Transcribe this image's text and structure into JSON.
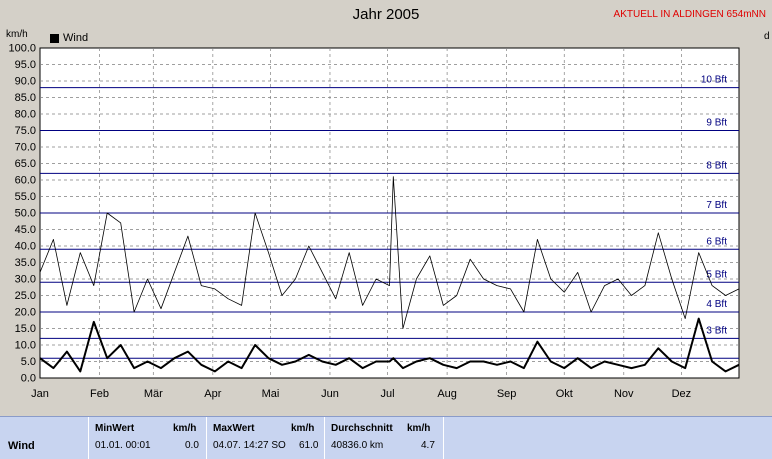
{
  "header": {
    "title": "Jahr 2005",
    "station": "AKTUELL IN ALDINGEN 654mNN",
    "y_unit": "km/h",
    "right_unit": "d"
  },
  "legend": {
    "label": "Wind"
  },
  "stats": {
    "row_label": "Wind",
    "min": {
      "label": "MinWert",
      "unit": "km/h",
      "date": "01.01.  00:01",
      "value": "0.0"
    },
    "max": {
      "label": "MaxWert",
      "unit": "km/h",
      "date": "04.07.  14:27 SO",
      "value": "61.0"
    },
    "avg": {
      "label": "Durchschnitt",
      "unit": "km/h",
      "distance": "40836.0 km",
      "value": "4.7"
    }
  },
  "colors": {
    "plot_bg": "#ffffff",
    "grid": "#808080",
    "beaufort": "#000080",
    "series": "#000000",
    "station": "#e00000"
  },
  "chart_data": {
    "type": "line",
    "title": "Jahr 2005",
    "ylabel": "km/h",
    "ylim": [
      0,
      100
    ],
    "y_ticks": [
      "0.0",
      "5.0",
      "10.0",
      "15.0",
      "20.0",
      "25.0",
      "30.0",
      "35.0",
      "40.0",
      "45.0",
      "50.0",
      "55.0",
      "60.0",
      "65.0",
      "70.0",
      "75.0",
      "80.0",
      "85.0",
      "90.0",
      "95.0",
      "100.0"
    ],
    "x_ticks": [
      "Jan",
      "Feb",
      "Mär",
      "Apr",
      "Mai",
      "Jun",
      "Jul",
      "Aug",
      "Sep",
      "Okt",
      "Nov",
      "Dez"
    ],
    "grid": true,
    "beaufort_lines": [
      {
        "label": "3 Bft",
        "value": 12
      },
      {
        "label": "4 Bft",
        "value": 20
      },
      {
        "label": "5 Bft",
        "value": 29
      },
      {
        "label": "6 Bft",
        "value": 39
      },
      {
        "label": "7 Bft",
        "value": 50
      },
      {
        "label": "8 Bft",
        "value": 62
      },
      {
        "label": "9 Bft",
        "value": 75
      },
      {
        "label": "10 Bft",
        "value": 88
      }
    ],
    "extra_lines": [
      6
    ],
    "series": [
      {
        "name": "Wind",
        "role": "max",
        "x": [
          1,
          8,
          15,
          22,
          29,
          36,
          43,
          50,
          57,
          64,
          71,
          78,
          85,
          92,
          99,
          106,
          113,
          120,
          127,
          134,
          141,
          148,
          155,
          162,
          169,
          176,
          183,
          185,
          190,
          197,
          204,
          211,
          218,
          225,
          232,
          239,
          246,
          253,
          260,
          267,
          274,
          281,
          288,
          295,
          302,
          309,
          316,
          323,
          330,
          337,
          344,
          351,
          358,
          365
        ],
        "values": [
          32,
          42,
          22,
          38,
          28,
          50,
          47,
          20,
          30,
          21,
          32,
          43,
          28,
          27,
          24,
          22,
          50,
          38,
          25,
          30,
          40,
          32,
          24,
          38,
          22,
          30,
          28,
          61,
          15,
          30,
          37,
          22,
          25,
          36,
          30,
          28,
          27,
          20,
          42,
          30,
          26,
          32,
          20,
          28,
          30,
          25,
          28,
          44,
          30,
          18,
          38,
          28,
          25,
          27
        ]
      },
      {
        "name": "Wind",
        "role": "mean",
        "x": [
          1,
          8,
          15,
          22,
          29,
          36,
          43,
          50,
          57,
          64,
          71,
          78,
          85,
          92,
          99,
          106,
          113,
          120,
          127,
          134,
          141,
          148,
          155,
          162,
          169,
          176,
          183,
          185,
          190,
          197,
          204,
          211,
          218,
          225,
          232,
          239,
          246,
          253,
          260,
          267,
          274,
          281,
          288,
          295,
          302,
          309,
          316,
          323,
          330,
          337,
          344,
          351,
          358,
          365
        ],
        "values": [
          6,
          3,
          8,
          2,
          17,
          6,
          10,
          3,
          5,
          3,
          6,
          8,
          4,
          2,
          5,
          3,
          10,
          6,
          4,
          5,
          7,
          5,
          4,
          6,
          3,
          5,
          5,
          6,
          3,
          5,
          6,
          4,
          3,
          5,
          5,
          4,
          5,
          3,
          11,
          5,
          3,
          6,
          3,
          5,
          4,
          3,
          4,
          9,
          5,
          3,
          18,
          5,
          2,
          4
        ]
      }
    ]
  }
}
